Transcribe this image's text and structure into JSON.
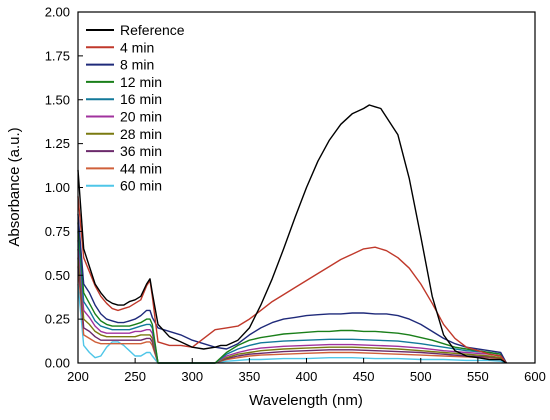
{
  "chart_data": {
    "type": "line",
    "xlabel": "Wavelength (nm)",
    "ylabel": "Absorbance (a.u.)",
    "xlim": [
      200,
      600
    ],
    "ylim": [
      0,
      2.0
    ],
    "x_ticks": [
      "200",
      "250",
      "300",
      "350",
      "400",
      "450",
      "500",
      "550",
      "600"
    ],
    "y_ticks": [
      "0.00",
      "0.25",
      "0.50",
      "0.75",
      "1.00",
      "1.25",
      "1.50",
      "1.75",
      "2.00"
    ],
    "legend_position": "top-left",
    "grid": false,
    "series": [
      {
        "name": "Reference",
        "color": "#000000",
        "x": [
          200,
          205,
          210,
          215,
          220,
          225,
          230,
          235,
          240,
          245,
          250,
          255,
          260,
          263,
          265,
          270,
          280,
          290,
          300,
          310,
          320,
          325,
          330,
          340,
          350,
          360,
          370,
          380,
          390,
          400,
          410,
          420,
          430,
          440,
          450,
          455,
          460,
          465,
          470,
          480,
          490,
          500,
          510,
          520,
          530,
          540,
          550,
          560,
          570,
          575
        ],
        "y": [
          1.1,
          0.65,
          0.55,
          0.45,
          0.4,
          0.36,
          0.34,
          0.33,
          0.33,
          0.35,
          0.36,
          0.38,
          0.45,
          0.48,
          0.4,
          0.22,
          0.15,
          0.12,
          0.09,
          0.08,
          0.09,
          0.1,
          0.1,
          0.13,
          0.2,
          0.33,
          0.48,
          0.65,
          0.83,
          1.0,
          1.15,
          1.27,
          1.36,
          1.42,
          1.45,
          1.47,
          1.46,
          1.45,
          1.4,
          1.3,
          1.05,
          0.72,
          0.38,
          0.16,
          0.07,
          0.04,
          0.03,
          0.02,
          0.02,
          0.0
        ]
      },
      {
        "name": "4 min",
        "color": "#c0392b",
        "x": [
          200,
          205,
          210,
          215,
          220,
          225,
          230,
          235,
          240,
          245,
          250,
          255,
          260,
          263,
          265,
          270,
          280,
          290,
          300,
          310,
          320,
          330,
          340,
          350,
          360,
          370,
          380,
          390,
          400,
          410,
          420,
          430,
          440,
          450,
          460,
          470,
          480,
          490,
          500,
          510,
          520,
          530,
          540,
          550,
          560,
          570,
          575
        ],
        "y": [
          0.95,
          0.6,
          0.52,
          0.44,
          0.38,
          0.34,
          0.31,
          0.3,
          0.31,
          0.32,
          0.34,
          0.36,
          0.44,
          0.47,
          0.38,
          0.12,
          0.1,
          0.1,
          0.09,
          0.14,
          0.19,
          0.2,
          0.21,
          0.25,
          0.3,
          0.35,
          0.39,
          0.43,
          0.47,
          0.51,
          0.55,
          0.59,
          0.62,
          0.65,
          0.66,
          0.64,
          0.6,
          0.54,
          0.45,
          0.34,
          0.22,
          0.14,
          0.09,
          0.07,
          0.05,
          0.04,
          0.0
        ]
      },
      {
        "name": "8 min",
        "color": "#1f2a7a",
        "x": [
          200,
          205,
          210,
          215,
          220,
          225,
          230,
          235,
          240,
          245,
          250,
          255,
          260,
          263,
          265,
          270,
          290,
          300,
          310,
          320,
          330,
          340,
          350,
          360,
          370,
          380,
          390,
          400,
          410,
          420,
          430,
          440,
          450,
          460,
          470,
          480,
          490,
          500,
          510,
          520,
          530,
          540,
          550,
          560,
          570,
          575
        ],
        "y": [
          0.85,
          0.45,
          0.4,
          0.33,
          0.28,
          0.25,
          0.24,
          0.23,
          0.23,
          0.24,
          0.25,
          0.27,
          0.3,
          0.3,
          0.26,
          0.2,
          0.16,
          0.13,
          0.11,
          0.09,
          0.08,
          0.11,
          0.16,
          0.2,
          0.23,
          0.25,
          0.26,
          0.27,
          0.275,
          0.28,
          0.28,
          0.285,
          0.285,
          0.28,
          0.28,
          0.27,
          0.25,
          0.22,
          0.18,
          0.14,
          0.11,
          0.09,
          0.08,
          0.07,
          0.06,
          0.0
        ]
      },
      {
        "name": "12 min",
        "color": "#1a7f1a",
        "x": [
          200,
          205,
          210,
          215,
          220,
          225,
          230,
          235,
          240,
          245,
          250,
          255,
          260,
          263,
          265,
          270,
          320,
          330,
          340,
          350,
          360,
          370,
          380,
          390,
          400,
          410,
          420,
          430,
          440,
          450,
          460,
          470,
          480,
          490,
          500,
          510,
          520,
          530,
          540,
          550,
          560,
          570,
          575
        ],
        "y": [
          0.8,
          0.4,
          0.34,
          0.28,
          0.24,
          0.22,
          0.21,
          0.21,
          0.21,
          0.21,
          0.22,
          0.23,
          0.25,
          0.25,
          0.22,
          0.0,
          0.0,
          0.06,
          0.1,
          0.13,
          0.145,
          0.155,
          0.165,
          0.17,
          0.175,
          0.18,
          0.18,
          0.185,
          0.185,
          0.18,
          0.18,
          0.175,
          0.17,
          0.16,
          0.145,
          0.13,
          0.11,
          0.09,
          0.08,
          0.07,
          0.06,
          0.05,
          0.0
        ]
      },
      {
        "name": "16 min",
        "color": "#12799a",
        "x": [
          200,
          205,
          210,
          215,
          220,
          225,
          230,
          235,
          240,
          245,
          250,
          255,
          260,
          263,
          265,
          270,
          320,
          330,
          340,
          350,
          360,
          380,
          400,
          420,
          440,
          460,
          480,
          500,
          520,
          540,
          560,
          570,
          575
        ],
        "y": [
          0.75,
          0.35,
          0.3,
          0.24,
          0.21,
          0.2,
          0.19,
          0.19,
          0.19,
          0.19,
          0.2,
          0.21,
          0.22,
          0.22,
          0.2,
          0.0,
          0.0,
          0.05,
          0.08,
          0.1,
          0.115,
          0.125,
          0.13,
          0.135,
          0.135,
          0.13,
          0.125,
          0.11,
          0.09,
          0.07,
          0.06,
          0.05,
          0.0
        ]
      },
      {
        "name": "20 min",
        "color": "#a0329e",
        "x": [
          200,
          205,
          210,
          215,
          220,
          225,
          230,
          235,
          240,
          245,
          250,
          255,
          260,
          263,
          265,
          270,
          320,
          330,
          340,
          350,
          360,
          380,
          400,
          420,
          440,
          460,
          480,
          500,
          520,
          540,
          560,
          570,
          575
        ],
        "y": [
          0.7,
          0.3,
          0.26,
          0.21,
          0.18,
          0.17,
          0.17,
          0.17,
          0.17,
          0.17,
          0.18,
          0.18,
          0.19,
          0.19,
          0.17,
          0.0,
          0.0,
          0.04,
          0.06,
          0.075,
          0.085,
          0.095,
          0.1,
          0.105,
          0.105,
          0.1,
          0.095,
          0.085,
          0.07,
          0.06,
          0.05,
          0.04,
          0.0
        ]
      },
      {
        "name": "28 min",
        "color": "#7a7a10",
        "x": [
          200,
          205,
          210,
          215,
          220,
          225,
          230,
          235,
          240,
          245,
          250,
          255,
          260,
          263,
          265,
          270,
          320,
          330,
          340,
          350,
          360,
          380,
          400,
          420,
          440,
          460,
          480,
          500,
          520,
          540,
          560,
          570,
          575
        ],
        "y": [
          0.65,
          0.25,
          0.22,
          0.18,
          0.16,
          0.15,
          0.15,
          0.15,
          0.15,
          0.15,
          0.15,
          0.16,
          0.16,
          0.16,
          0.14,
          0.0,
          0.0,
          0.03,
          0.05,
          0.06,
          0.07,
          0.08,
          0.085,
          0.09,
          0.09,
          0.085,
          0.08,
          0.07,
          0.06,
          0.05,
          0.04,
          0.03,
          0.0
        ]
      },
      {
        "name": "36 min",
        "color": "#6b2a6b",
        "x": [
          200,
          205,
          210,
          215,
          220,
          225,
          230,
          235,
          240,
          245,
          250,
          255,
          260,
          263,
          265,
          270,
          320,
          330,
          340,
          350,
          360,
          380,
          400,
          420,
          440,
          460,
          480,
          500,
          520,
          540,
          560,
          570,
          575
        ],
        "y": [
          0.6,
          0.2,
          0.18,
          0.15,
          0.13,
          0.13,
          0.13,
          0.13,
          0.13,
          0.13,
          0.13,
          0.13,
          0.14,
          0.14,
          0.12,
          0.0,
          0.0,
          0.025,
          0.04,
          0.05,
          0.055,
          0.065,
          0.07,
          0.075,
          0.075,
          0.07,
          0.065,
          0.06,
          0.05,
          0.04,
          0.035,
          0.03,
          0.0
        ]
      },
      {
        "name": "44 min",
        "color": "#d0603a",
        "x": [
          200,
          205,
          210,
          215,
          220,
          225,
          230,
          235,
          240,
          245,
          250,
          255,
          260,
          263,
          265,
          270,
          320,
          330,
          340,
          350,
          360,
          380,
          400,
          420,
          440,
          460,
          480,
          500,
          520,
          540,
          560,
          570,
          575
        ],
        "y": [
          0.55,
          0.16,
          0.14,
          0.12,
          0.11,
          0.11,
          0.11,
          0.11,
          0.11,
          0.11,
          0.11,
          0.11,
          0.12,
          0.12,
          0.1,
          0.0,
          0.0,
          0.02,
          0.03,
          0.04,
          0.045,
          0.05,
          0.055,
          0.06,
          0.06,
          0.055,
          0.05,
          0.045,
          0.04,
          0.035,
          0.03,
          0.025,
          0.0
        ]
      },
      {
        "name": "60 min",
        "color": "#4fc6e8",
        "x": [
          200,
          205,
          210,
          215,
          220,
          225,
          230,
          235,
          240,
          245,
          250,
          255,
          260,
          263,
          265,
          270,
          320,
          330,
          340,
          350,
          360,
          380,
          400,
          420,
          440,
          460,
          480,
          500,
          520,
          540,
          560,
          570,
          575
        ],
        "y": [
          0.45,
          0.1,
          0.06,
          0.03,
          0.04,
          0.09,
          0.12,
          0.12,
          0.1,
          0.07,
          0.04,
          0.04,
          0.06,
          0.06,
          0.04,
          0.0,
          0.0,
          0.01,
          0.015,
          0.02,
          0.02,
          0.025,
          0.025,
          0.03,
          0.03,
          0.025,
          0.025,
          0.02,
          0.02,
          0.015,
          0.015,
          0.01,
          0.0
        ]
      }
    ]
  }
}
